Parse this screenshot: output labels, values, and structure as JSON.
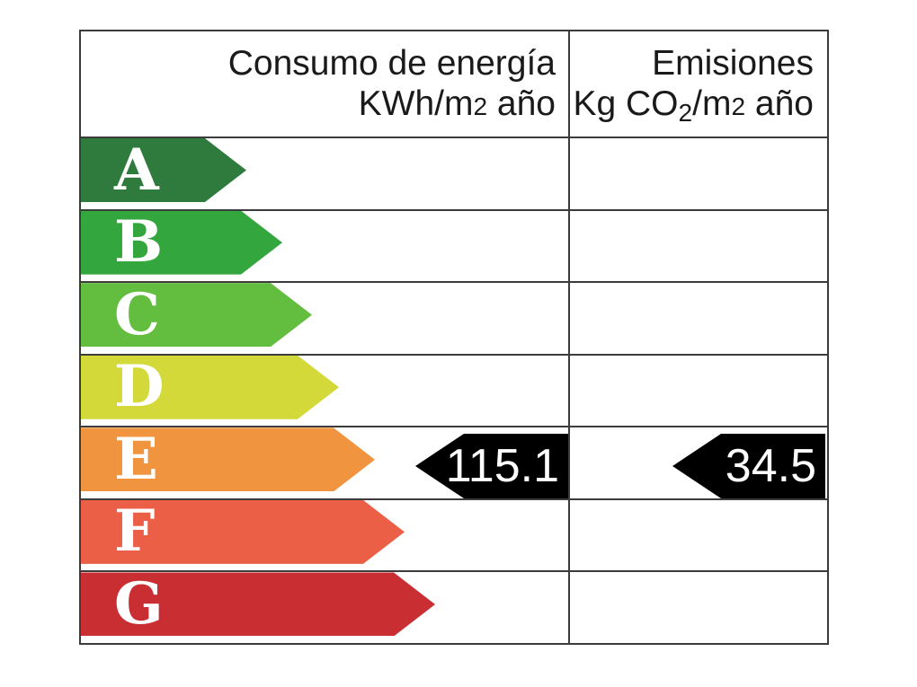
{
  "label": {
    "columns": {
      "consumption": {
        "title": "Consumo de energía",
        "unit": "KWh/m2 año",
        "unit_parts": {
          "pre": "KWh/m",
          "sup": "2",
          "post": " año"
        }
      },
      "emissions": {
        "title": "Emisiones",
        "unit": "Kg CO2/m2 año",
        "unit_parts": {
          "pre": "Kg CO",
          "sub": "2",
          "mid": "/m",
          "sup": "2",
          "post": " año"
        }
      }
    },
    "ratings": [
      {
        "letter": "A",
        "color": "#2E7B3D",
        "arrow_width": 184
      },
      {
        "letter": "B",
        "color": "#34A63E",
        "arrow_width": 224
      },
      {
        "letter": "C",
        "color": "#63BD3E",
        "arrow_width": 257
      },
      {
        "letter": "D",
        "color": "#D2D939",
        "arrow_width": 287
      },
      {
        "letter": "E",
        "color": "#F0943F",
        "arrow_width": 327
      },
      {
        "letter": "F",
        "color": "#EA5F46",
        "arrow_width": 360
      },
      {
        "letter": "G",
        "color": "#C92E33",
        "arrow_width": 394
      }
    ],
    "current_rating": "E",
    "values": {
      "consumption": "115.1",
      "emissions": "34.5"
    }
  },
  "colors": {
    "indicator_bg": "#000000",
    "border": "#3C3C3C",
    "header_text": "#1A1A1A",
    "letter_text": "#FFFFFF"
  },
  "chart_data": {
    "type": "table",
    "columns": [
      "Consumo de energía KWh/m2 año",
      "Emisiones Kg CO2/m2 año"
    ],
    "rating_scale": [
      "A",
      "B",
      "C",
      "D",
      "E",
      "F",
      "G"
    ],
    "rating_colors": [
      "#2E7B3D",
      "#34A63E",
      "#63BD3E",
      "#D2D939",
      "#F0943F",
      "#EA5F46",
      "#C92E33"
    ],
    "indicated_rating": "E",
    "values": {
      "consumo_de_energia_kwh_m2_ano": 115.1,
      "emisiones_kg_co2_m2_ano": 34.5
    }
  }
}
